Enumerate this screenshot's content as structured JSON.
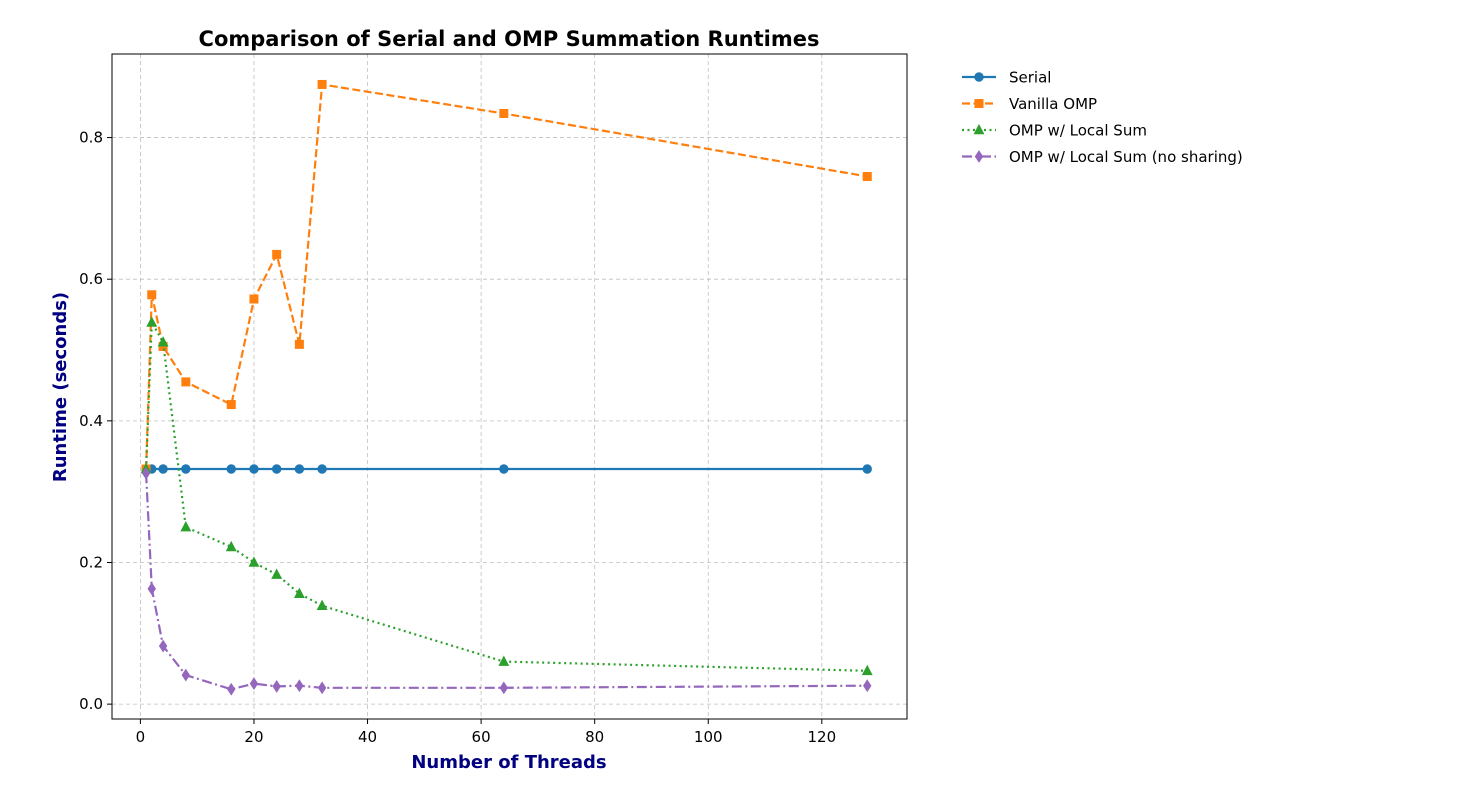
{
  "chart_data": {
    "type": "line",
    "title": "Comparison of Serial and OMP Summation Runtimes",
    "xlabel": "Number of Threads",
    "ylabel": "Runtime (seconds)",
    "xlim": [
      -5,
      135
    ],
    "ylim": [
      -0.021,
      0.918
    ],
    "xticks": [
      0,
      20,
      40,
      60,
      80,
      100,
      120
    ],
    "xtick_labels": [
      "0",
      "20",
      "40",
      "60",
      "80",
      "100",
      "120"
    ],
    "yticks": [
      0.0,
      0.2,
      0.4,
      0.6,
      0.8
    ],
    "ytick_labels": [
      "0.0",
      "0.2",
      "0.4",
      "0.6",
      "0.8"
    ],
    "grid": true,
    "legend_position": "outside right, top",
    "series": [
      {
        "name": "Serial",
        "color": "#1f77b4",
        "marker": "circle",
        "linestyle": "solid",
        "x": [
          1,
          2,
          4,
          8,
          16,
          20,
          24,
          28,
          32,
          64,
          128
        ],
        "y": [
          0.332,
          0.332,
          0.332,
          0.332,
          0.332,
          0.332,
          0.332,
          0.332,
          0.332,
          0.332,
          0.332
        ]
      },
      {
        "name": "Vanilla OMP",
        "color": "#ff7f0e",
        "marker": "square",
        "linestyle": "dashed",
        "x": [
          1,
          2,
          4,
          8,
          16,
          20,
          24,
          28,
          32,
          64,
          128
        ],
        "y": [
          0.332,
          0.578,
          0.505,
          0.455,
          0.423,
          0.572,
          0.635,
          0.508,
          0.875,
          0.834,
          0.745
        ]
      },
      {
        "name": "OMP w/ Local Sum",
        "color": "#2ca02c",
        "marker": "triangle",
        "linestyle": "dotted",
        "x": [
          1,
          2,
          4,
          8,
          16,
          20,
          24,
          28,
          32,
          64,
          128
        ],
        "y": [
          0.332,
          0.539,
          0.511,
          0.25,
          0.222,
          0.2,
          0.183,
          0.156,
          0.139,
          0.06,
          0.047
        ]
      },
      {
        "name": "OMP w/ Local Sum (no sharing)",
        "color": "#9467bd",
        "marker": "diamond",
        "linestyle": "dashdot",
        "x": [
          1,
          2,
          4,
          8,
          16,
          20,
          24,
          28,
          32,
          64,
          128
        ],
        "y": [
          0.326,
          0.163,
          0.082,
          0.041,
          0.021,
          0.029,
          0.025,
          0.026,
          0.023,
          0.023,
          0.026
        ]
      }
    ]
  }
}
